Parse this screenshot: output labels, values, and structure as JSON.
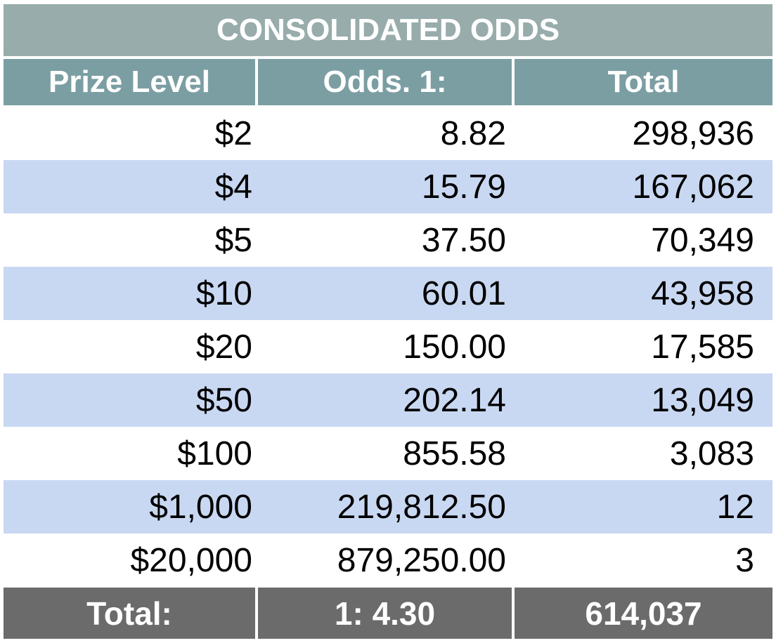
{
  "title": "CONSOLIDATED ODDS",
  "headers": [
    "Prize Level",
    "Odds. 1:",
    "Total"
  ],
  "rows": [
    {
      "prize": "$2",
      "odds": "8.82",
      "total": "298,936"
    },
    {
      "prize": "$4",
      "odds": "15.79",
      "total": "167,062"
    },
    {
      "prize": "$5",
      "odds": "37.50",
      "total": "70,349"
    },
    {
      "prize": "$10",
      "odds": "60.01",
      "total": "43,958"
    },
    {
      "prize": "$20",
      "odds": "150.00",
      "total": "17,585"
    },
    {
      "prize": "$50",
      "odds": "202.14",
      "total": "13,049"
    },
    {
      "prize": "$100",
      "odds": "855.58",
      "total": "3,083"
    },
    {
      "prize": "$1,000",
      "odds": "219,812.50",
      "total": "12"
    },
    {
      "prize": "$20,000",
      "odds": "879,250.00",
      "total": "3"
    }
  ],
  "totals": {
    "label": "Total:",
    "odds": "1: 4.30",
    "total": "614,037"
  },
  "colors": {
    "title_bg": "#97acab",
    "header_bg": "#7b9ea3",
    "row_alt_bg": "#c9d8f2",
    "total_bg": "#6b6b6b"
  }
}
